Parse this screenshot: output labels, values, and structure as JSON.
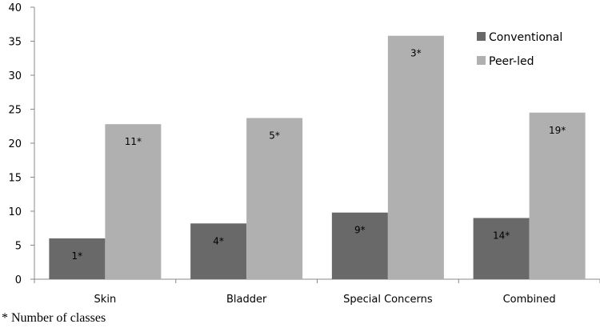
{
  "chart_data": {
    "type": "bar",
    "categories": [
      "Skin",
      "Bladder",
      "Special Concerns",
      "Combined"
    ],
    "series": [
      {
        "name": "Conventional",
        "color": "#696969",
        "values": [
          6,
          8.2,
          9.8,
          9
        ],
        "labels": [
          "1*",
          "4*",
          "9*",
          "14*"
        ]
      },
      {
        "name": "Peer-led",
        "color": "#b0b0b0",
        "values": [
          22.8,
          23.7,
          35.8,
          24.5
        ],
        "labels": [
          "11*",
          "5*",
          "3*",
          "19*"
        ]
      }
    ],
    "yticks": [
      "0",
      "5",
      "10",
      "15",
      "20",
      "25",
      "30",
      "35",
      "40"
    ],
    "ylim": [
      0,
      40
    ],
    "grid": false,
    "legend_position": "top-right",
    "title": "",
    "xlabel": "",
    "ylabel": ""
  },
  "footnote": "* Number of classes"
}
